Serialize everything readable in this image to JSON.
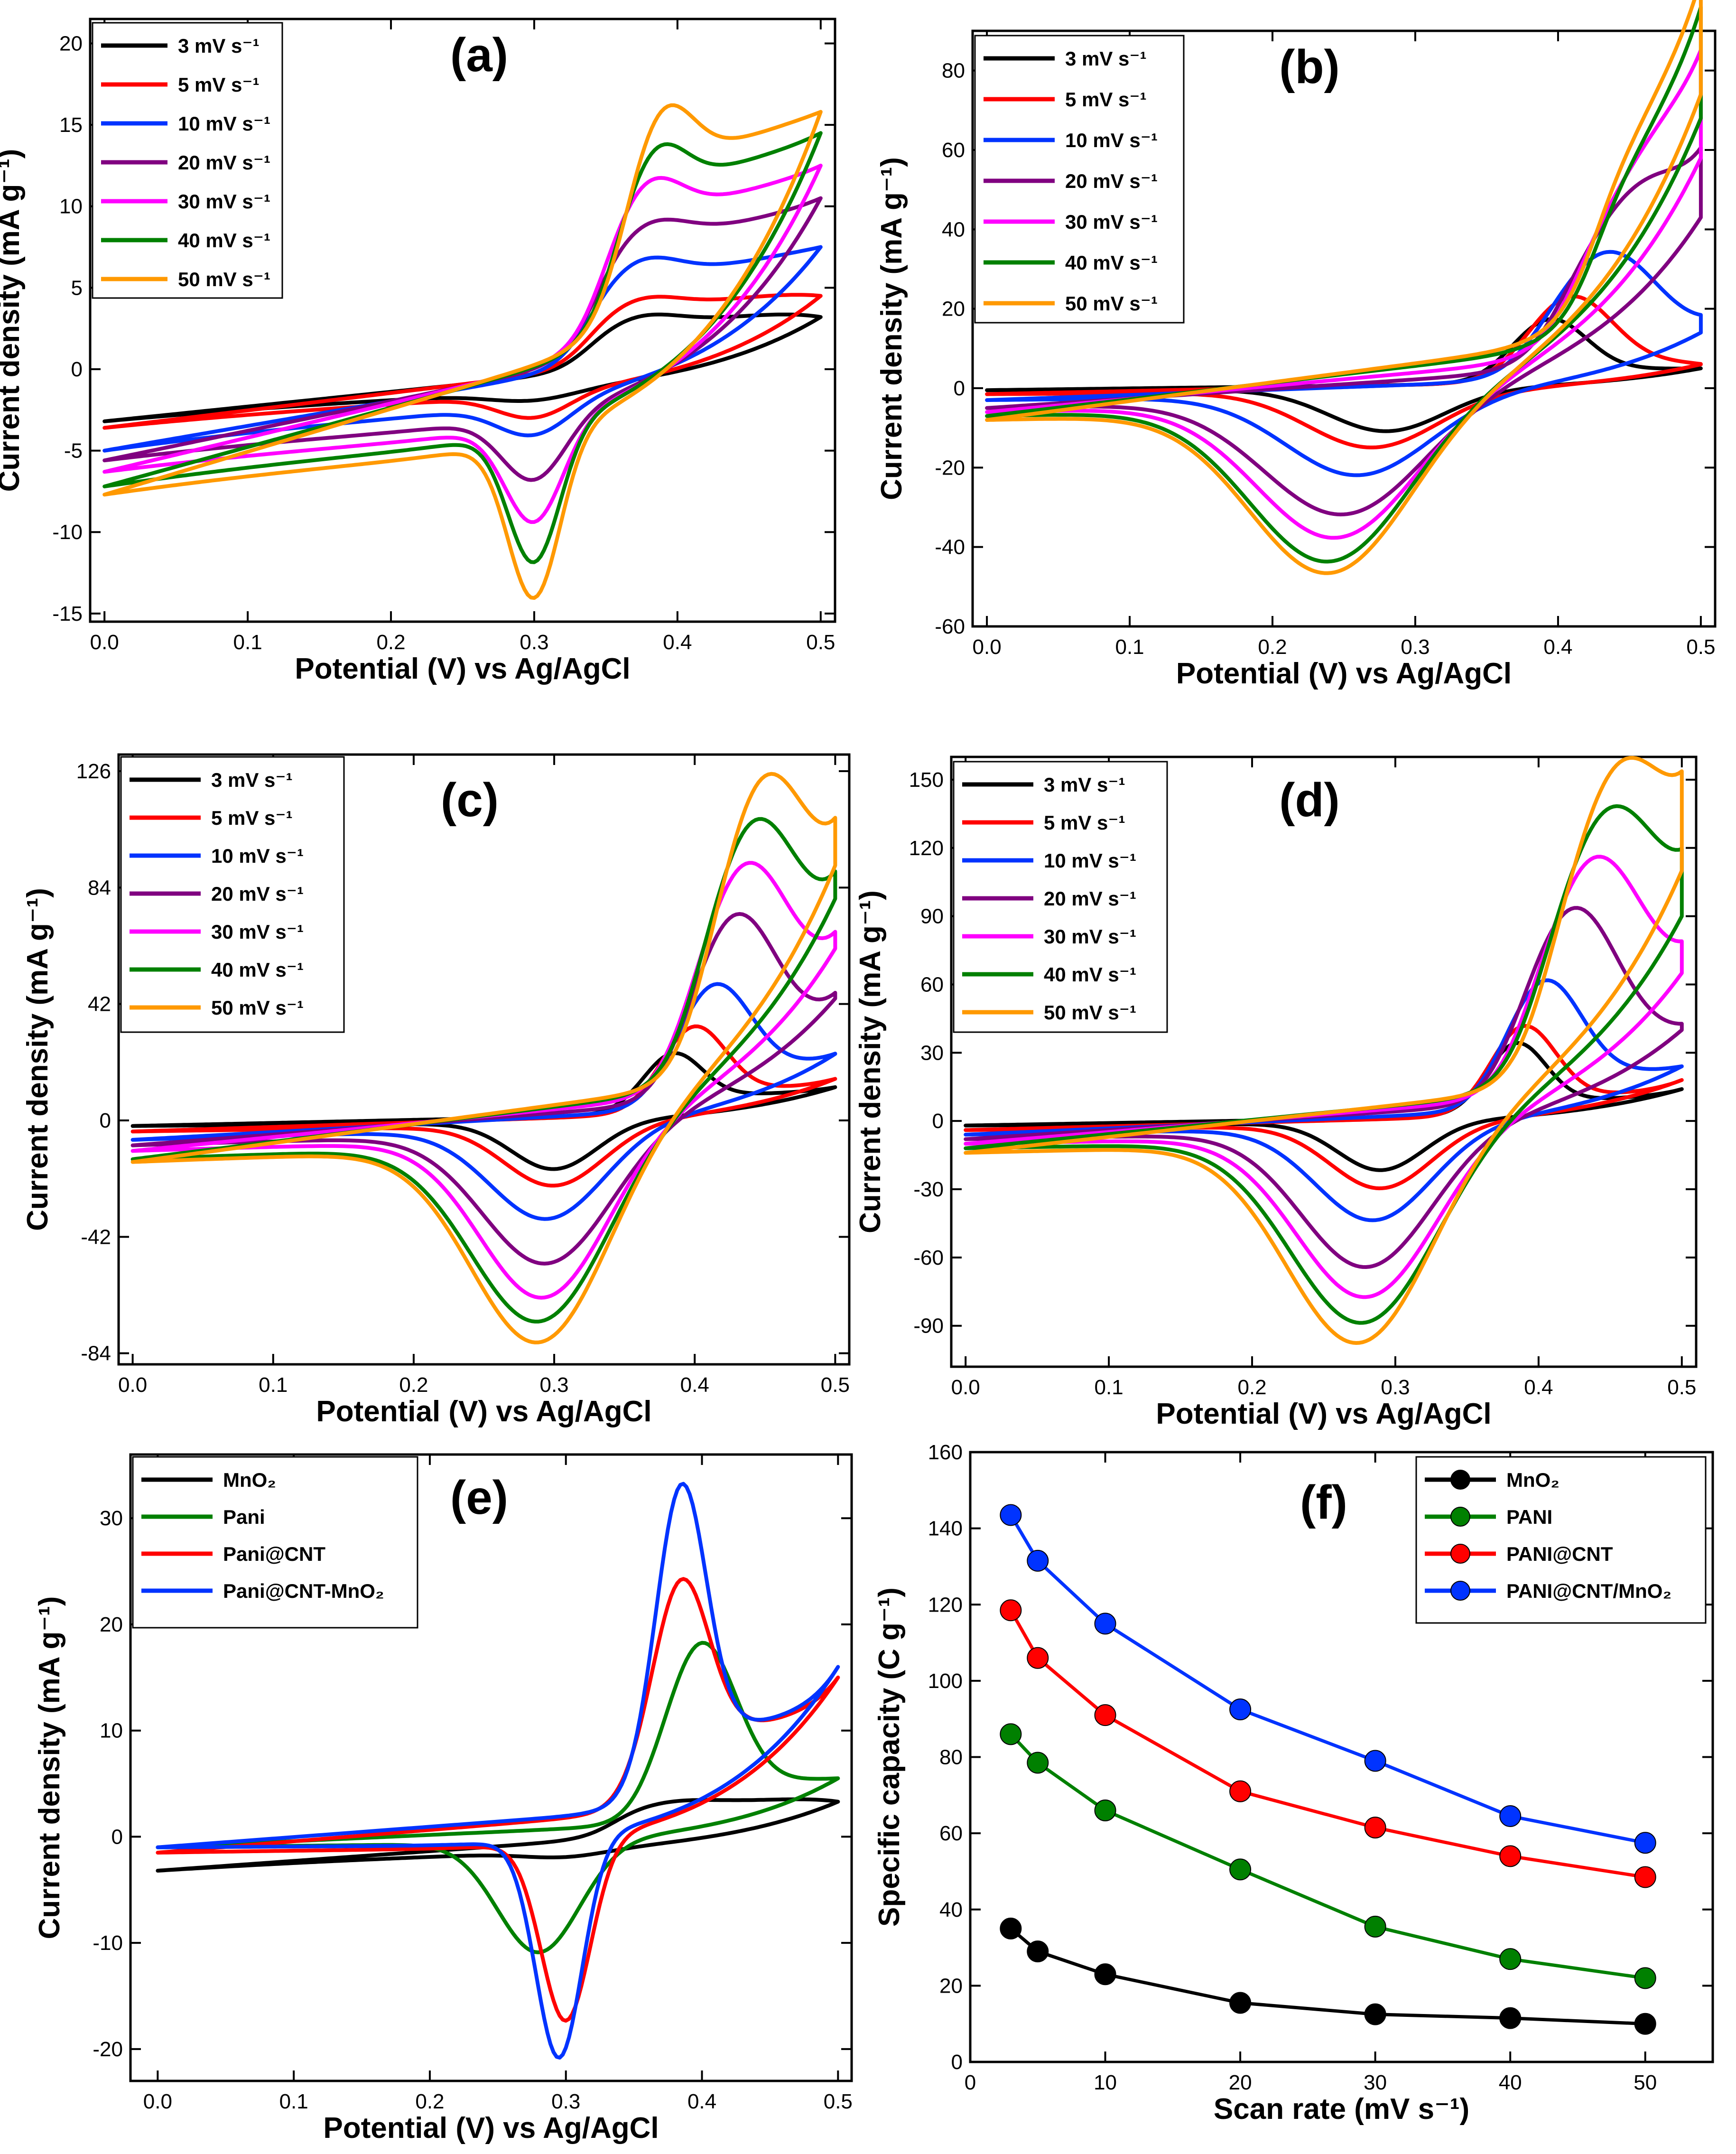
{
  "figure": "Cyclic voltammetry and specific capacity of MnO2, PANI, PANI@CNT and PANI@CNT/MnO2 electrodes",
  "colors": {
    "black": "#000000",
    "red": "#ff0000",
    "blue": "#0033ff",
    "purple": "#800080",
    "magenta": "#ff00ff",
    "green": "#008000",
    "orange": "#ff9900"
  },
  "chart_data": [
    {
      "id": "a",
      "type": "line",
      "subtype": "cyclic-voltammogram",
      "panel_label": "(a)",
      "xlabel": "Potential (V) vs Ag/AgCl",
      "ylabel": "Current density (mA g⁻¹)",
      "xlim": [
        -0.01,
        0.51
      ],
      "ylim": [
        -15.5,
        21.5
      ],
      "xticks": [
        "0.0",
        "0.1",
        "0.2",
        "0.3",
        "0.4",
        "0.5"
      ],
      "xtick_values": [
        0,
        0.1,
        0.2,
        0.3,
        0.4,
        0.5
      ],
      "yticks": [
        "-15",
        "-10",
        "-5",
        "0",
        "5",
        "10",
        "15",
        "20"
      ],
      "ytick_values": [
        -15,
        -10,
        -5,
        0,
        5,
        10,
        15,
        20
      ],
      "legend": {
        "position": "top-left",
        "style": "bold",
        "entries": [
          "3 mV s⁻¹",
          "5 mV s⁻¹",
          "10 mV s⁻¹",
          "20 mV s⁻¹",
          "30 mV s⁻¹",
          "40 mV s⁻¹",
          "50 mV s⁻¹"
        ]
      },
      "series": [
        {
          "name": "3 mV s⁻¹",
          "color": "#000000",
          "start": -3.2,
          "vertex": 3.2,
          "plat_a": 3.8,
          "peak_a": 4.5,
          "E_a": 0.375,
          "width_a": 0.025,
          "base_c": -1.2,
          "peak_c": -1.8,
          "E_c": 0.3,
          "width_c": 0.03
        },
        {
          "name": "5 mV s⁻¹",
          "color": "#ff0000",
          "start": -3.6,
          "vertex": 4.5,
          "plat_a": 5.0,
          "peak_a": 5.8,
          "E_a": 0.375,
          "width_a": 0.025,
          "base_c": -1.4,
          "peak_c": -2.9,
          "E_c": 0.3,
          "width_c": 0.025
        },
        {
          "name": "10 mV s⁻¹",
          "color": "#0033ff",
          "start": -5.0,
          "vertex": 7.5,
          "plat_a": 7.4,
          "peak_a": 8.8,
          "E_a": 0.375,
          "width_a": 0.025,
          "base_c": -2.0,
          "peak_c": -4.0,
          "E_c": 0.3,
          "width_c": 0.025
        },
        {
          "name": "20 mV s⁻¹",
          "color": "#800080",
          "start": -5.6,
          "vertex": 10.5,
          "plat_a": 10.0,
          "peak_a": 11.4,
          "E_a": 0.38,
          "width_a": 0.025,
          "base_c": -3.0,
          "peak_c": -7.0,
          "E_c": 0.3,
          "width_c": 0.022
        },
        {
          "name": "30 mV s⁻¹",
          "color": "#ff00ff",
          "start": -6.3,
          "vertex": 12.5,
          "plat_a": 12.0,
          "peak_a": 14.5,
          "E_a": 0.38,
          "width_a": 0.022,
          "base_c": -3.6,
          "peak_c": -9.7,
          "E_c": 0.3,
          "width_c": 0.02
        },
        {
          "name": "40 mV s⁻¹",
          "color": "#008000",
          "start": -7.2,
          "vertex": 14.5,
          "plat_a": 14.0,
          "peak_a": 17.0,
          "E_a": 0.385,
          "width_a": 0.02,
          "base_c": -4.0,
          "peak_c": -12.2,
          "E_c": 0.3,
          "width_c": 0.018
        },
        {
          "name": "50 mV s⁻¹",
          "color": "#ff9900",
          "start": -7.7,
          "vertex": 15.8,
          "plat_a": 15.6,
          "peak_a": 19.6,
          "E_a": 0.39,
          "width_a": 0.02,
          "base_c": -4.6,
          "peak_c": -14.5,
          "E_c": 0.3,
          "width_c": 0.018
        }
      ]
    },
    {
      "id": "b",
      "type": "line",
      "subtype": "cyclic-voltammogram",
      "panel_label": "(b)",
      "xlabel": "Potential (V) vs Ag/AgCl",
      "ylabel": "Current density (mA g⁻¹)",
      "xlim": [
        -0.01,
        0.51
      ],
      "ylim": [
        -60,
        90
      ],
      "xticks": [
        "0.0",
        "0.1",
        "0.2",
        "0.3",
        "0.4",
        "0.5"
      ],
      "xtick_values": [
        0,
        0.1,
        0.2,
        0.3,
        0.4,
        0.5
      ],
      "yticks": [
        "-60",
        "-40",
        "-20",
        "0",
        "20",
        "40",
        "60",
        "80"
      ],
      "ytick_values": [
        -60,
        -40,
        -20,
        0,
        20,
        40,
        60,
        80
      ],
      "legend": {
        "position": "top-left",
        "style": "normal",
        "entries": [
          "3 mV s⁻¹",
          "5 mV s⁻¹",
          "10 mV s⁻¹",
          "20 mV s⁻¹",
          "30 mV s⁻¹",
          "40 mV s⁻¹",
          "50 mV s⁻¹"
        ]
      },
      "series": [
        {
          "name": "3 mV s⁻¹",
          "color": "#000000",
          "start": -0.5,
          "vertex": 5,
          "plat_a": 5,
          "peak_a": 18,
          "E_a": 0.395,
          "width_a": 0.025,
          "base_c": -0.5,
          "peak_c": -11,
          "E_c": 0.28,
          "width_c": 0.04
        },
        {
          "name": "5 mV s⁻¹",
          "color": "#ff0000",
          "start": -1.5,
          "vertex": 6,
          "plat_a": 7,
          "peak_a": 24,
          "E_a": 0.41,
          "width_a": 0.028,
          "base_c": -1,
          "peak_c": -15,
          "E_c": 0.27,
          "width_c": 0.045
        },
        {
          "name": "10 mV s⁻¹",
          "color": "#0033ff",
          "start": -3,
          "vertex": 14,
          "plat_a": 10,
          "peak_a": 35,
          "E_a": 0.435,
          "width_a": 0.035,
          "base_c": -2,
          "peak_c": -22,
          "E_c": 0.26,
          "width_c": 0.05
        },
        {
          "name": "20 mV s⁻¹",
          "color": "#800080",
          "start": -5,
          "vertex": 43,
          "plat_a": 20,
          "peak_a": 49,
          "E_a": 0.46,
          "width_a": 0.04,
          "base_c": -3,
          "peak_c": -32,
          "E_c": 0.25,
          "width_c": 0.055
        },
        {
          "name": "30 mV s⁻¹",
          "color": "#ff00ff",
          "start": -6,
          "vertex": 58,
          "plat_a": 30,
          "peak_a": 60,
          "E_a": 0.48,
          "width_a": 0.045,
          "base_c": -4,
          "peak_c": -38,
          "E_c": 0.245,
          "width_c": 0.055
        },
        {
          "name": "40 mV s⁻¹",
          "color": "#008000",
          "start": -7,
          "vertex": 68,
          "plat_a": 40,
          "peak_a": 68,
          "E_a": 0.5,
          "width_a": 0.05,
          "base_c": -5,
          "peak_c": -44,
          "E_c": 0.24,
          "width_c": 0.055
        },
        {
          "name": "50 mV s⁻¹",
          "color": "#ff9900",
          "start": -8,
          "vertex": 74,
          "plat_a": 45,
          "peak_a": 74,
          "E_a": 0.5,
          "width_a": 0.05,
          "base_c": -6,
          "peak_c": -47,
          "E_c": 0.24,
          "width_c": 0.055
        }
      ]
    },
    {
      "id": "c",
      "type": "line",
      "subtype": "cyclic-voltammogram",
      "panel_label": "(c)",
      "xlabel": "Potential (V) vs Ag/AgCl",
      "ylabel": "Current density (mA g⁻¹)",
      "xlim": [
        -0.01,
        0.51
      ],
      "ylim": [
        -88,
        132
      ],
      "xticks": [
        "0.0",
        "0.1",
        "0.2",
        "0.3",
        "0.4",
        "0.5"
      ],
      "xtick_values": [
        0,
        0.1,
        0.2,
        0.3,
        0.4,
        0.5
      ],
      "yticks": [
        "-84",
        "-42",
        "0",
        "42",
        "84",
        "126"
      ],
      "ytick_values": [
        -84,
        -42,
        0,
        42,
        84,
        126
      ],
      "legend": {
        "position": "top-left",
        "style": "normal",
        "entries": [
          "3 mV s⁻¹",
          "5 mV s⁻¹",
          "10 mV s⁻¹",
          "20 mV s⁻¹",
          "30 mV s⁻¹",
          "40 mV s⁻¹",
          "50 mV s⁻¹"
        ]
      },
      "series": [
        {
          "name": "3 mV s⁻¹",
          "color": "#000000",
          "start": -2,
          "vertex": 12,
          "plat_a": 10,
          "peak_a": 26,
          "E_a": 0.385,
          "width_a": 0.02,
          "base_c": -1,
          "peak_c": -18,
          "E_c": 0.3,
          "width_c": 0.03
        },
        {
          "name": "5 mV s⁻¹",
          "color": "#ff0000",
          "start": -4,
          "vertex": 15,
          "plat_a": 12,
          "peak_a": 36,
          "E_a": 0.4,
          "width_a": 0.022,
          "base_c": -2,
          "peak_c": -24,
          "E_c": 0.3,
          "width_c": 0.035
        },
        {
          "name": "10 mV s⁻¹",
          "color": "#0033ff",
          "start": -7,
          "vertex": 24,
          "plat_a": 20,
          "peak_a": 52,
          "E_a": 0.415,
          "width_a": 0.025,
          "base_c": -3,
          "peak_c": -36,
          "E_c": 0.295,
          "width_c": 0.04
        },
        {
          "name": "20 mV s⁻¹",
          "color": "#800080",
          "start": -9,
          "vertex": 44,
          "plat_a": 30,
          "peak_a": 77,
          "E_a": 0.43,
          "width_a": 0.028,
          "base_c": -5,
          "peak_c": -53,
          "E_c": 0.295,
          "width_c": 0.045
        },
        {
          "name": "30 mV s⁻¹",
          "color": "#ff00ff",
          "start": -11,
          "vertex": 62,
          "plat_a": 40,
          "peak_a": 95,
          "E_a": 0.437,
          "width_a": 0.03,
          "base_c": -7,
          "peak_c": -66,
          "E_c": 0.293,
          "width_c": 0.045
        },
        {
          "name": "40 mV s⁻¹",
          "color": "#008000",
          "start": -14,
          "vertex": 80,
          "plat_a": 50,
          "peak_a": 110,
          "E_a": 0.443,
          "width_a": 0.03,
          "base_c": -9,
          "peak_c": -75,
          "E_c": 0.29,
          "width_c": 0.048
        },
        {
          "name": "50 mV s⁻¹",
          "color": "#ff9900",
          "start": -15,
          "vertex": 92,
          "plat_a": 55,
          "peak_a": 124,
          "E_a": 0.45,
          "width_a": 0.03,
          "base_c": -10,
          "peak_c": -83,
          "E_c": 0.29,
          "width_c": 0.048
        }
      ]
    },
    {
      "id": "d",
      "type": "line",
      "subtype": "cyclic-voltammogram",
      "panel_label": "(d)",
      "xlabel": "Potential (V) vs Ag/AgCl",
      "ylabel": "Current density (mA g⁻¹)",
      "xlim": [
        -0.01,
        0.51
      ],
      "ylim": [
        -108,
        160
      ],
      "xticks": [
        "0.0",
        "0.1",
        "0.2",
        "0.3",
        "0.4",
        "0.5"
      ],
      "xtick_values": [
        0,
        0.1,
        0.2,
        0.3,
        0.4,
        0.5
      ],
      "yticks": [
        "-90",
        "-60",
        "-30",
        "0",
        "30",
        "60",
        "90",
        "120",
        "150"
      ],
      "ytick_values": [
        -90,
        -60,
        -30,
        0,
        30,
        60,
        90,
        120,
        150
      ],
      "legend": {
        "position": "top-left",
        "style": "bold",
        "entries": [
          "3 mV s⁻¹",
          "5 mV s⁻¹",
          "10 mV s⁻¹",
          "20 mV s⁻¹",
          "30 mV s⁻¹",
          "40 mV s⁻¹",
          "50 mV s⁻¹"
        ]
      },
      "series": [
        {
          "name": "3 mV s⁻¹",
          "color": "#000000",
          "start": -2,
          "vertex": 14,
          "plat_a": 10,
          "peak_a": 36,
          "E_a": 0.385,
          "width_a": 0.02,
          "base_c": -1,
          "peak_c": -22,
          "E_c": 0.29,
          "width_c": 0.03
        },
        {
          "name": "5 mV s⁻¹",
          "color": "#ff0000",
          "start": -4,
          "vertex": 18,
          "plat_a": 12,
          "peak_a": 44,
          "E_a": 0.39,
          "width_a": 0.022,
          "base_c": -2,
          "peak_c": -30,
          "E_c": 0.29,
          "width_c": 0.035
        },
        {
          "name": "10 mV s⁻¹",
          "color": "#0033ff",
          "start": -6,
          "vertex": 24,
          "plat_a": 22,
          "peak_a": 65,
          "E_a": 0.405,
          "width_a": 0.025,
          "base_c": -3,
          "peak_c": -44,
          "E_c": 0.285,
          "width_c": 0.04
        },
        {
          "name": "20 mV s⁻¹",
          "color": "#800080",
          "start": -8,
          "vertex": 40,
          "plat_a": 35,
          "peak_a": 97,
          "E_a": 0.425,
          "width_a": 0.03,
          "base_c": -5,
          "peak_c": -65,
          "E_c": 0.28,
          "width_c": 0.045
        },
        {
          "name": "30 mV s⁻¹",
          "color": "#ff00ff",
          "start": -10,
          "vertex": 65,
          "plat_a": 45,
          "peak_a": 118,
          "E_a": 0.44,
          "width_a": 0.033,
          "base_c": -7,
          "peak_c": -79,
          "E_c": 0.28,
          "width_c": 0.048
        },
        {
          "name": "40 mV s⁻¹",
          "color": "#008000",
          "start": -12,
          "vertex": 90,
          "plat_a": 55,
          "peak_a": 137,
          "E_a": 0.45,
          "width_a": 0.035,
          "base_c": -9,
          "peak_c": -91,
          "E_c": 0.278,
          "width_c": 0.05
        },
        {
          "name": "50 mV s⁻¹",
          "color": "#ff9900",
          "start": -14,
          "vertex": 110,
          "plat_a": 60,
          "peak_a": 153,
          "E_a": 0.457,
          "width_a": 0.035,
          "base_c": -10,
          "peak_c": -100,
          "E_c": 0.275,
          "width_c": 0.05
        }
      ]
    },
    {
      "id": "e",
      "type": "line",
      "subtype": "cyclic-voltammogram",
      "panel_label": "(e)",
      "xlabel": "Potential (V) vs Ag/AgCl",
      "ylabel": "Current density (mA g⁻¹)",
      "xlim": [
        -0.02,
        0.51
      ],
      "ylim": [
        -23,
        36
      ],
      "xticks": [
        "0.0",
        "0.1",
        "0.2",
        "0.3",
        "0.4",
        "0.5"
      ],
      "xtick_values": [
        0,
        0.1,
        0.2,
        0.3,
        0.4,
        0.5
      ],
      "yticks": [
        "-20",
        "-10",
        "0",
        "10",
        "20",
        "30"
      ],
      "ytick_values": [
        -20,
        -10,
        0,
        10,
        20,
        30
      ],
      "legend": {
        "position": "top-left",
        "style": "bold",
        "entries": [
          "MnO₂",
          "Pani",
          "Pani@CNT",
          "Pani@CNT-MnO₂"
        ]
      },
      "series": [
        {
          "name": "MnO₂",
          "color": "#000000",
          "start": -3.2,
          "vertex": 3.3,
          "plat_a": 4.0,
          "peak_a": 4.5,
          "E_a": 0.38,
          "width_a": 0.03,
          "base_c": -1.2,
          "peak_c": -1.8,
          "E_c": 0.3,
          "width_c": 0.03
        },
        {
          "name": "Pani",
          "color": "#008000",
          "start": -1.0,
          "vertex": 5.5,
          "plat_a": 5.5,
          "peak_a": 19,
          "E_a": 0.4,
          "width_a": 0.025,
          "base_c": -0.6,
          "peak_c": -11,
          "E_c": 0.28,
          "width_c": 0.03
        },
        {
          "name": "Pani@CNT",
          "color": "#ff0000",
          "start": -1.5,
          "vertex": 15,
          "plat_a": 11,
          "peak_a": 26,
          "E_a": 0.385,
          "width_a": 0.02,
          "base_c": -1.0,
          "peak_c": -18,
          "E_c": 0.3,
          "width_c": 0.018
        },
        {
          "name": "Pani@CNT-MnO₂",
          "color": "#0033ff",
          "start": -1.0,
          "vertex": 16,
          "plat_a": 11,
          "peak_a": 35,
          "E_a": 0.385,
          "width_a": 0.018,
          "base_c": -0.8,
          "peak_c": -21.5,
          "E_c": 0.295,
          "width_c": 0.017
        }
      ]
    },
    {
      "id": "f",
      "type": "line",
      "subtype": "line-with-markers",
      "panel_label": "(f)",
      "xlabel": "Scan rate (mV s⁻¹)",
      "ylabel": "Specific capacity (C g⁻¹)",
      "xlim": [
        0,
        55
      ],
      "ylim": [
        0,
        160
      ],
      "xticks": [
        "0",
        "10",
        "20",
        "30",
        "40",
        "50"
      ],
      "xtick_values": [
        0,
        10,
        20,
        30,
        40,
        50
      ],
      "yticks": [
        "0",
        "20",
        "40",
        "60",
        "80",
        "100",
        "120",
        "140",
        "160"
      ],
      "ytick_values": [
        0,
        20,
        40,
        60,
        80,
        100,
        120,
        140,
        160
      ],
      "x": [
        3,
        5,
        10,
        20,
        30,
        40,
        50
      ],
      "legend": {
        "position": "top-right",
        "style": "bold",
        "entries": [
          "MnO₂",
          "PANI",
          "PANI@CNT",
          "PANI@CNT/MnO₂"
        ]
      },
      "series": [
        {
          "name": "MnO₂",
          "color": "#000000",
          "values": [
            35,
            29,
            23,
            15.5,
            12.5,
            11.5,
            10
          ]
        },
        {
          "name": "PANI",
          "color": "#008000",
          "values": [
            86,
            78.5,
            66,
            50.5,
            35.5,
            27,
            22
          ]
        },
        {
          "name": "PANI@CNT",
          "color": "#ff0000",
          "values": [
            118.5,
            106,
            91,
            71,
            61.5,
            54,
            48.5
          ]
        },
        {
          "name": "PANI@CNT/MnO₂",
          "color": "#0033ff",
          "values": [
            143.5,
            131.5,
            115,
            92.5,
            79,
            64.5,
            57.5
          ]
        }
      ]
    }
  ]
}
